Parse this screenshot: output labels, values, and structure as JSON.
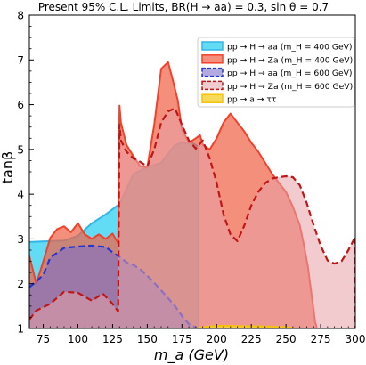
{
  "chart_data": {
    "type": "area",
    "title": "Present 95% C.L. Limits, BR(H → aa) = 0.3, sin θ = 0.7",
    "xlabel": "m_a (GeV)",
    "ylabel": "tanβ",
    "xlim": [
      65,
      300
    ],
    "ylim": [
      1,
      8
    ],
    "xticks": [
      75,
      100,
      125,
      150,
      175,
      200,
      225,
      250,
      275,
      300
    ],
    "yticks": [
      1,
      2,
      3,
      4,
      5,
      6,
      7,
      8
    ],
    "grid": false,
    "legend_position": "top-right",
    "series": [
      {
        "name": "pp → H → aa (m_H = 400 GeV)",
        "fill": "#3fd3f3",
        "fill_opacity": 0.82,
        "stroke": "#35b5e6",
        "dash": false,
        "x": [
          65,
          80,
          90,
          100,
          110,
          120,
          130,
          140,
          150,
          160,
          170,
          175,
          183,
          185,
          187,
          187
        ],
        "y": [
          2.93,
          2.95,
          2.96,
          3.07,
          3.35,
          3.55,
          3.78,
          4.45,
          4.6,
          4.7,
          5.1,
          5.15,
          5.13,
          5.1,
          5.05,
          1.0
        ]
      },
      {
        "name": "pp → H → Za (m_H = 400 GeV)",
        "fill": "#f06448",
        "fill_opacity": 0.72,
        "stroke": "#f2412a",
        "dash": false,
        "x": [
          65,
          70,
          75,
          80,
          85,
          90,
          95,
          100,
          105,
          110,
          115,
          120,
          125,
          129,
          130,
          131,
          135,
          140,
          145,
          150,
          155,
          160,
          165,
          168,
          172,
          175,
          180,
          185,
          188,
          190,
          195,
          200,
          205,
          210,
          215,
          220,
          225,
          230,
          235,
          240,
          250,
          255,
          260,
          263,
          266,
          268,
          270,
          271,
          272,
          272
        ],
        "y": [
          2.62,
          2.0,
          2.5,
          3.02,
          3.22,
          3.28,
          3.15,
          3.35,
          3.1,
          3.0,
          3.1,
          3.0,
          3.12,
          2.9,
          5.98,
          5.6,
          5.1,
          4.85,
          4.62,
          4.6,
          5.55,
          6.8,
          6.95,
          6.6,
          6.1,
          5.45,
          5.15,
          5.25,
          5.32,
          5.1,
          5.0,
          5.25,
          5.6,
          5.8,
          5.6,
          5.4,
          5.15,
          4.95,
          4.7,
          4.45,
          4.05,
          3.72,
          3.3,
          2.85,
          2.35,
          1.85,
          1.4,
          1.15,
          1.05,
          1.0
        ]
      },
      {
        "name": "pp → H → aa (m_H = 600 GeV)",
        "fill": "#7a6eca",
        "fill_opacity": 0.58,
        "stroke": "#2236d6",
        "dash": true,
        "x": [
          65,
          70,
          75,
          80,
          90,
          100,
          110,
          120,
          125,
          130,
          135,
          140,
          145,
          150,
          155,
          160,
          165,
          170,
          175,
          180,
          185,
          188
        ],
        "y": [
          1.92,
          2.05,
          2.2,
          2.58,
          2.8,
          2.83,
          2.85,
          2.82,
          2.7,
          2.6,
          2.48,
          2.42,
          2.32,
          2.18,
          2.02,
          1.85,
          1.68,
          1.5,
          1.28,
          1.1,
          1.02,
          1.0
        ]
      },
      {
        "name": "pp → H → Za (m_H = 600 GeV)",
        "fill": "#e8a0a8",
        "fill_opacity": 0.55,
        "stroke": "#c01616",
        "dash": true,
        "x": [
          65,
          70,
          80,
          90,
          100,
          110,
          118,
          125,
          129,
          130,
          131,
          135,
          140,
          145,
          150,
          155,
          160,
          165,
          170,
          175,
          180,
          185,
          190,
          195,
          200,
          205,
          210,
          215,
          220,
          225,
          230,
          235,
          240,
          245,
          250,
          255,
          260,
          265,
          270,
          275,
          280,
          285,
          290,
          295,
          300,
          300
        ],
        "y": [
          1.2,
          1.4,
          1.55,
          1.82,
          1.8,
          1.62,
          1.78,
          1.55,
          1.38,
          5.55,
          5.2,
          4.95,
          4.8,
          4.72,
          4.62,
          5.0,
          5.6,
          5.85,
          5.92,
          5.55,
          5.2,
          5.02,
          5.2,
          4.8,
          4.25,
          3.55,
          3.1,
          2.95,
          3.3,
          3.75,
          4.05,
          4.25,
          4.35,
          4.38,
          4.4,
          4.38,
          4.2,
          3.8,
          3.3,
          2.85,
          2.52,
          2.45,
          2.5,
          2.75,
          3.05,
          1.0
        ]
      },
      {
        "name": "pp → a → ττ",
        "fill": "#f6d33a",
        "fill_opacity": 0.85,
        "stroke": "#f4c20d",
        "dash": false,
        "x": [
          185,
          190,
          200,
          210,
          220,
          230,
          240,
          250,
          255,
          256
        ],
        "y": [
          1.0,
          1.03,
          1.06,
          1.06,
          1.05,
          1.05,
          1.04,
          1.03,
          1.01,
          1.0
        ]
      }
    ]
  }
}
